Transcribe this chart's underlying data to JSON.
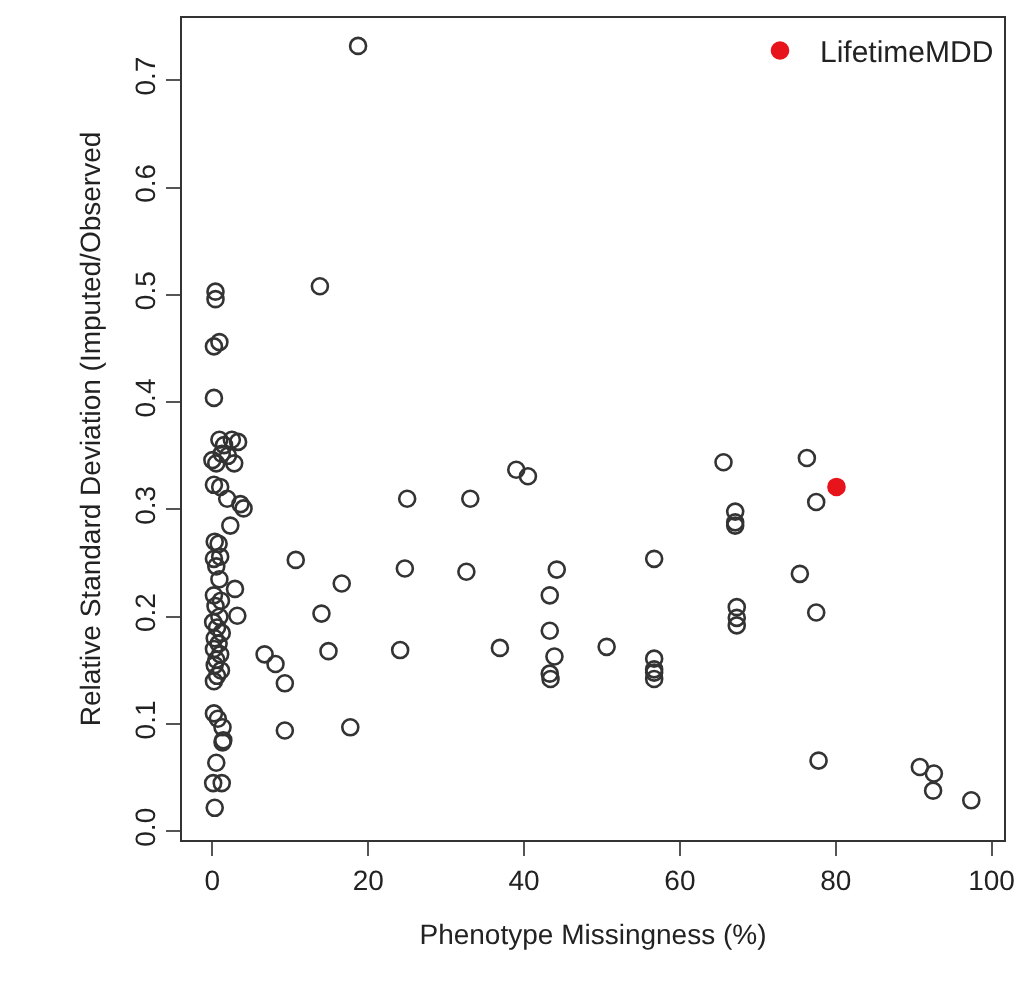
{
  "chart_data": {
    "type": "scatter",
    "xlabel": "Phenotype Missingness (%)",
    "ylabel": "Relative Standard Deviation (Imputed/Observed",
    "xlim": [
      -3.9,
      101.6
    ],
    "ylim": [
      -0.008,
      0.758
    ],
    "xticks": [
      0,
      20,
      40,
      60,
      80,
      100
    ],
    "yticks": [
      {
        "value": 0,
        "label": "0.0"
      },
      0.1,
      0.2,
      0.3,
      0.4,
      0.5,
      0.6,
      0.7
    ],
    "grid": false,
    "legend": "top right",
    "marker": "circle",
    "series": [
      {
        "color": "#333333",
        "x": [
          18.7,
          13.8,
          0.4,
          0.4,
          0.2,
          0.9,
          0.2,
          0.9,
          1.5,
          2.5,
          3.3,
          1.2,
          2,
          2.8,
          0.5,
          39,
          40.5,
          0,
          0.2,
          1,
          1.9,
          3.6,
          4,
          2.3,
          25,
          33.1,
          0.3,
          0.8,
          0.2,
          1,
          0.5,
          10.7,
          24.7,
          32.6,
          44.2,
          2.9,
          0.2,
          1.1,
          16.6,
          43.3,
          14,
          3.2,
          0.4,
          0.9,
          0.1,
          0.6,
          1.2,
          0.3,
          0.8,
          0.2,
          1,
          0.5,
          0.3,
          1.1,
          0.6,
          0.2,
          0.9,
          6.7,
          8.1,
          9.3,
          14.9,
          24.1,
          36.9,
          43.3,
          43.9,
          43.3,
          43.4,
          9.3,
          17.7,
          0.2,
          0.7,
          1.3,
          1.4,
          1.3,
          0.5,
          0.1,
          1.2,
          0.3,
          65.6,
          76.3,
          77.5,
          67.1,
          67.1,
          67.1,
          56.7,
          75.4,
          67.3,
          67.3,
          67.3,
          77.5,
          50.6,
          56.7,
          56.7,
          56.7,
          56.7,
          77.8,
          90.8,
          92.6,
          92.5,
          97.4
        ],
        "values": [
          0.732,
          0.508,
          0.503,
          0.496,
          0.452,
          0.456,
          0.404,
          0.365,
          0.36,
          0.365,
          0.363,
          0.352,
          0.35,
          0.343,
          0.343,
          0.337,
          0.331,
          0.346,
          0.323,
          0.321,
          0.31,
          0.305,
          0.301,
          0.285,
          0.31,
          0.31,
          0.27,
          0.268,
          0.254,
          0.256,
          0.247,
          0.253,
          0.245,
          0.242,
          0.244,
          0.226,
          0.22,
          0.215,
          0.231,
          0.22,
          0.203,
          0.201,
          0.21,
          0.2,
          0.195,
          0.19,
          0.185,
          0.18,
          0.175,
          0.17,
          0.165,
          0.16,
          0.155,
          0.15,
          0.145,
          0.14,
          0.235,
          0.165,
          0.156,
          0.138,
          0.168,
          0.169,
          0.171,
          0.187,
          0.163,
          0.147,
          0.142,
          0.094,
          0.097,
          0.11,
          0.105,
          0.097,
          0.085,
          0.083,
          0.064,
          0.045,
          0.045,
          0.022,
          0.344,
          0.348,
          0.307,
          0.298,
          0.288,
          0.285,
          0.254,
          0.24,
          0.209,
          0.199,
          0.192,
          0.204,
          0.172,
          0.161,
          0.151,
          0.148,
          0.142,
          0.066,
          0.06,
          0.054,
          0.038,
          0.029
        ]
      },
      {
        "name": "LifetimeMDD",
        "color": "#e8141c",
        "x": [
          80.1
        ],
        "values": [
          0.321
        ]
      }
    ]
  }
}
